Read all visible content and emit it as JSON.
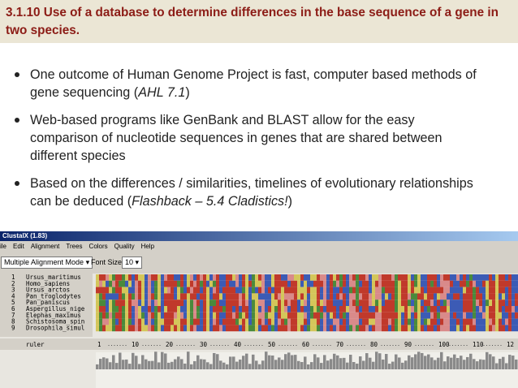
{
  "header": {
    "title": "3.1.10 Use of a database to determine differences in the base sequence of a gene in two species."
  },
  "bullets": [
    [
      {
        "text": "One outcome of Human Genome Project is fast, computer based methods of gene sequencing ("
      },
      {
        "text": "AHL 7.1",
        "italic": true
      },
      {
        "text": ")"
      }
    ],
    [
      {
        "text": "Web-based programs like GenBank and BLAST allow for the easy comparison of nucleotide sequences in genes that are shared between different species"
      }
    ],
    [
      {
        "text": "Based on the differences / similarities, timelines of evolutionary relationships can be deduced ("
      },
      {
        "text": "Flashback – 5.4 Cladistics!",
        "italic": true
      },
      {
        "text": ")"
      }
    ]
  ],
  "window": {
    "title": "ClustalX (1.83)",
    "menu": [
      "ile",
      "Edit",
      "Alignment",
      "Trees",
      "Colors",
      "Quality",
      "Help"
    ],
    "mode": "Multiple Alignment Mode",
    "font_size_label": "Font Size:",
    "font_size": 10,
    "sequences": [
      {
        "number": 1,
        "name": "Ursus_maritimus"
      },
      {
        "number": 2,
        "name": "Homo_sapiens"
      },
      {
        "number": 3,
        "name": "Ursus_arctos"
      },
      {
        "number": 4,
        "name": "Pan_troglodytes"
      },
      {
        "number": 5,
        "name": "Pan_paniscus"
      },
      {
        "number": 6,
        "name": "Aspergillus_nige"
      },
      {
        "number": 7,
        "name": "Elephas_maximus"
      },
      {
        "number": 8,
        "name": "Schistosoma_spin"
      },
      {
        "number": 9,
        "name": "Drosophila_simul"
      }
    ],
    "ruler_label": "ruler",
    "ruler_marks": [
      1,
      10,
      20,
      30,
      40,
      50,
      60,
      70,
      80,
      90,
      100,
      110,
      "12"
    ]
  }
}
